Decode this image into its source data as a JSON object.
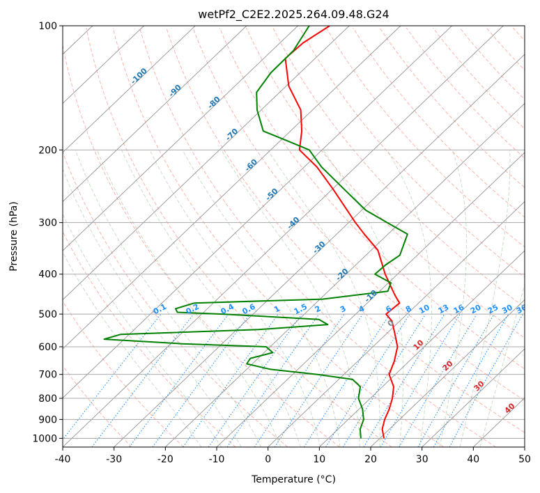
{
  "chart_data": {
    "type": "line",
    "chart_kind": "skew-T log-P diagram",
    "title": "wetPf2_C2E2.2025.264.09.48.G24",
    "xlabel": "Temperature (°C)",
    "ylabel": "Pressure (hPa)",
    "xlim": [
      -40,
      50
    ],
    "ylim_hpa": [
      1050,
      100
    ],
    "y_scale": "log",
    "x_ticks": [
      -40,
      -30,
      -20,
      -10,
      0,
      10,
      20,
      30,
      40,
      50
    ],
    "y_ticks": [
      100,
      200,
      300,
      400,
      500,
      600,
      700,
      800,
      900,
      1000
    ],
    "grid": true,
    "series": [
      {
        "name": "",
        "color": "#ff0000",
        "points": [
          {
            "p": 1000,
            "t": 20.8
          },
          {
            "p": 950,
            "t": 18.6
          },
          {
            "p": 900,
            "t": 17.1
          },
          {
            "p": 850,
            "t": 15.9
          },
          {
            "p": 800,
            "t": 14.3
          },
          {
            "p": 750,
            "t": 12.2
          },
          {
            "p": 700,
            "t": 8.8
          },
          {
            "p": 650,
            "t": 7.1
          },
          {
            "p": 600,
            "t": 4.8
          },
          {
            "p": 560,
            "t": 1.8
          },
          {
            "p": 520,
            "t": -1.5
          },
          {
            "p": 500,
            "t": -4.1
          },
          {
            "p": 470,
            "t": -3.7
          },
          {
            "p": 450,
            "t": -6.2
          },
          {
            "p": 400,
            "t": -12.4
          },
          {
            "p": 350,
            "t": -18.7
          },
          {
            "p": 320,
            "t": -24.6
          },
          {
            "p": 300,
            "t": -28.7
          },
          {
            "p": 250,
            "t": -39.6
          },
          {
            "p": 220,
            "t": -47.5
          },
          {
            "p": 200,
            "t": -54.4
          },
          {
            "p": 180,
            "t": -57.8
          },
          {
            "p": 160,
            "t": -62.3
          },
          {
            "p": 140,
            "t": -69.5
          },
          {
            "p": 120,
            "t": -75.8
          },
          {
            "p": 110,
            "t": -75.5
          },
          {
            "p": 100,
            "t": -73.8
          }
        ]
      },
      {
        "name": "",
        "color": "#008000",
        "points": [
          {
            "p": 1000,
            "t": 16.3
          },
          {
            "p": 950,
            "t": 14.3
          },
          {
            "p": 900,
            "t": 13.0
          },
          {
            "p": 850,
            "t": 10.7
          },
          {
            "p": 800,
            "t": 7.7
          },
          {
            "p": 750,
            "t": 5.7
          },
          {
            "p": 720,
            "t": 2.7
          },
          {
            "p": 700,
            "t": -5.2
          },
          {
            "p": 680,
            "t": -15.5
          },
          {
            "p": 660,
            "t": -21.1
          },
          {
            "p": 640,
            "t": -21.5
          },
          {
            "p": 620,
            "t": -18.3
          },
          {
            "p": 600,
            "t": -20.8
          },
          {
            "p": 590,
            "t": -37.7
          },
          {
            "p": 575,
            "t": -53.9
          },
          {
            "p": 560,
            "t": -51.7
          },
          {
            "p": 545,
            "t": -25.8
          },
          {
            "p": 530,
            "t": -13.3
          },
          {
            "p": 515,
            "t": -16.1
          },
          {
            "p": 500,
            "t": -35.9
          },
          {
            "p": 495,
            "t": -45.1
          },
          {
            "p": 485,
            "t": -46.2
          },
          {
            "p": 470,
            "t": -43.7
          },
          {
            "p": 460,
            "t": -19.5
          },
          {
            "p": 440,
            "t": -8.4
          },
          {
            "p": 420,
            "t": -9.5
          },
          {
            "p": 400,
            "t": -14.4
          },
          {
            "p": 380,
            "t": -14.2
          },
          {
            "p": 360,
            "t": -13.4
          },
          {
            "p": 320,
            "t": -16.2
          },
          {
            "p": 300,
            "t": -22.5
          },
          {
            "p": 280,
            "t": -29.2
          },
          {
            "p": 250,
            "t": -37.4
          },
          {
            "p": 220,
            "t": -46.6
          },
          {
            "p": 200,
            "t": -52.5
          },
          {
            "p": 190,
            "t": -58.7
          },
          {
            "p": 180,
            "t": -65.3
          },
          {
            "p": 160,
            "t": -70.8
          },
          {
            "p": 145,
            "t": -74.5
          },
          {
            "p": 130,
            "t": -75.7
          },
          {
            "p": 115,
            "t": -75.8
          },
          {
            "p": 100,
            "t": -77.8
          }
        ]
      }
    ],
    "isotherm_labels": {
      "color": "#1f77b4",
      "values": [
        -100,
        -90,
        -80,
        -70,
        -60,
        -50,
        -40,
        -30,
        -20,
        -10
      ]
    },
    "mixing_ratio_labels": {
      "color": "#1e90ff",
      "values": [
        "0.1",
        "0.2",
        "0.4",
        "0.6",
        "1",
        "1.5",
        "2",
        "3",
        "4",
        "6",
        "8",
        "10",
        "13",
        "16",
        "20",
        "25",
        "30",
        "36"
      ]
    },
    "moist_adiabat_labels": {
      "color": "#d62728",
      "values": [
        10,
        20,
        30,
        40
      ]
    },
    "zero_label": {
      "color": "#808080",
      "value": "0"
    },
    "colors": {
      "temperature": "#ff0000",
      "dewpoint": "#008000",
      "isotherm": "#808080",
      "dry_adiabat": "#fa8072",
      "moist_adiabat": "#8fbc8f",
      "mixing_ratio": "#1e90ff",
      "isobar": "#a9a9a9"
    }
  }
}
